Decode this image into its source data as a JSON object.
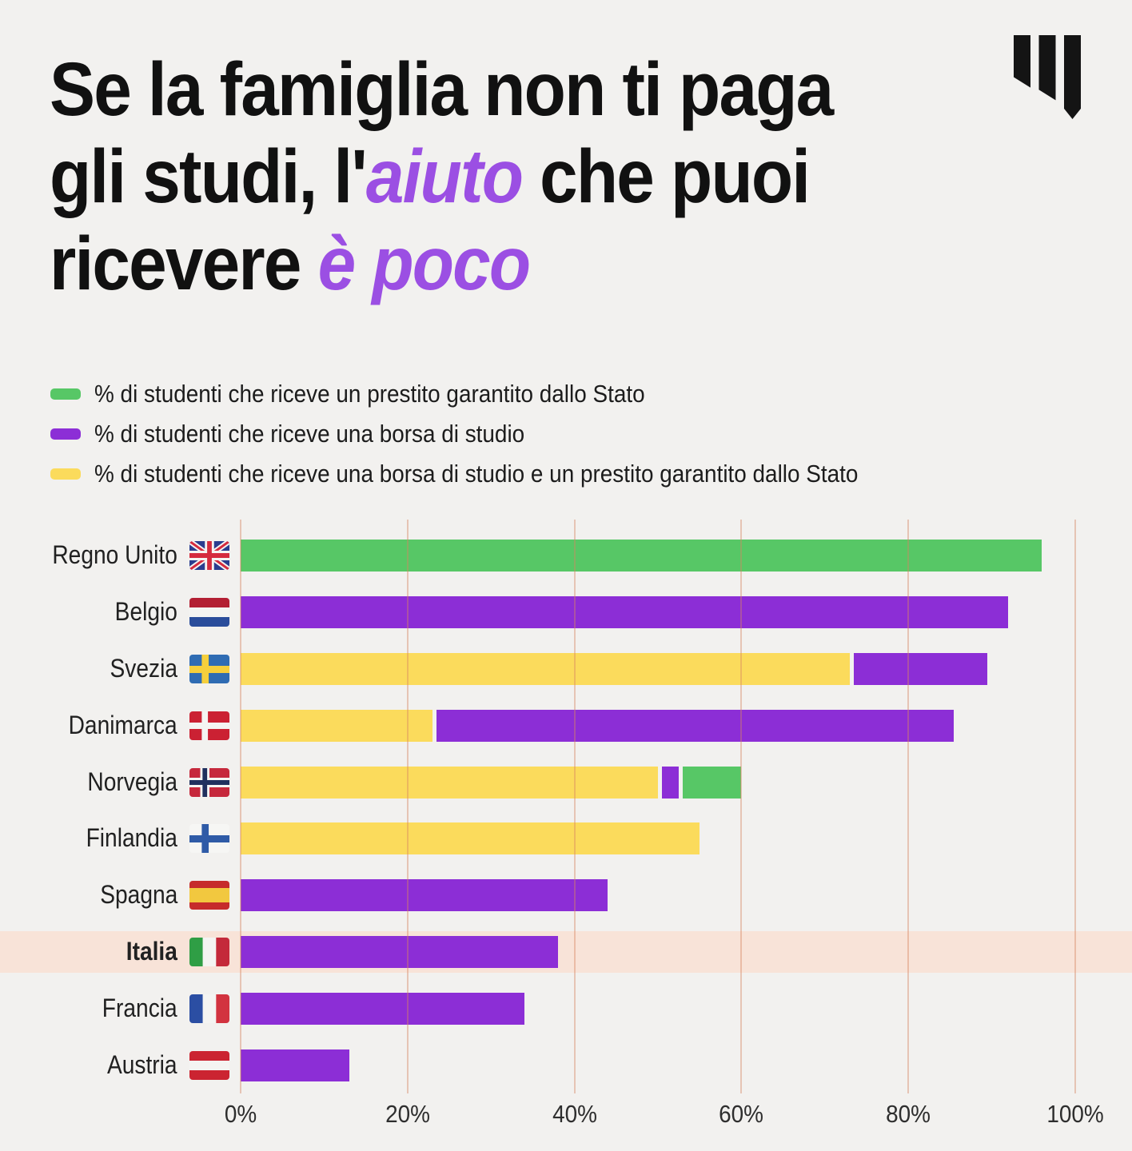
{
  "header": {
    "title_lines": [
      [
        {
          "t": "Se la famiglia non ti paga",
          "c": "black"
        }
      ],
      [
        {
          "t": "gli studi, l'",
          "c": "black"
        },
        {
          "t": "aiuto",
          "c": "purple"
        },
        {
          "t": " che puoi",
          "c": "black"
        }
      ],
      [
        {
          "t": "ricevere ",
          "c": "black"
        },
        {
          "t": "è poco",
          "c": "purple"
        }
      ]
    ],
    "logo": "will-media-w-logo"
  },
  "legend": [
    {
      "key": "green",
      "label": "% di studenti che riceve un prestito garantito dallo Stato"
    },
    {
      "key": "purple",
      "label": "% di studenti che riceve una borsa di studio"
    },
    {
      "key": "yellow",
      "label": "% di studenti che riceve una borsa di studio e un prestito garantito dallo Stato"
    }
  ],
  "chart_data": {
    "type": "bar",
    "orientation": "horizontal",
    "stacked": true,
    "title": "Se la famiglia non ti paga gli studi, l'aiuto che puoi ricevere è poco",
    "xlabel": "",
    "ylabel": "",
    "xlim": [
      0,
      100
    ],
    "x_ticks": [
      "0%",
      "20%",
      "40%",
      "60%",
      "80%",
      "100%"
    ],
    "grid": true,
    "legend_position": "top-left",
    "highlighted_category": "Italia",
    "series_names": {
      "green": "% di studenti che riceve un prestito garantito dallo Stato",
      "purple": "% di studenti che riceve una borsa di studio",
      "yellow": "% di studenti che riceve una borsa di studio e un prestito garantito dallo Stato"
    },
    "categories": [
      "Regno Unito",
      "Belgio",
      "Svezia",
      "Danimarca",
      "Norvegia",
      "Finlandia",
      "Spagna",
      "Italia",
      "Francia",
      "Austria"
    ],
    "rows": [
      {
        "country": "Regno Unito",
        "flag": "uk",
        "highlighted": false,
        "segments": [
          {
            "series": "green",
            "value": 96
          }
        ]
      },
      {
        "country": "Belgio",
        "flag": "nl",
        "highlighted": false,
        "segments": [
          {
            "series": "purple",
            "value": 92
          }
        ]
      },
      {
        "country": "Svezia",
        "flag": "sweden",
        "highlighted": false,
        "segments": [
          {
            "series": "yellow",
            "value": 73
          },
          {
            "series": "purple",
            "value": 16
          }
        ]
      },
      {
        "country": "Danimarca",
        "flag": "denmark",
        "highlighted": false,
        "segments": [
          {
            "series": "yellow",
            "value": 23
          },
          {
            "series": "purple",
            "value": 62
          }
        ]
      },
      {
        "country": "Norvegia",
        "flag": "norway",
        "highlighted": false,
        "segments": [
          {
            "series": "yellow",
            "value": 50
          },
          {
            "series": "purple",
            "value": 2
          },
          {
            "series": "green",
            "value": 7
          }
        ]
      },
      {
        "country": "Finlandia",
        "flag": "finland",
        "highlighted": false,
        "segments": [
          {
            "series": "yellow",
            "value": 55
          }
        ]
      },
      {
        "country": "Spagna",
        "flag": "spain",
        "highlighted": false,
        "segments": [
          {
            "series": "purple",
            "value": 44
          }
        ]
      },
      {
        "country": "Italia",
        "flag": "italy",
        "highlighted": true,
        "segments": [
          {
            "series": "purple",
            "value": 38
          }
        ]
      },
      {
        "country": "Francia",
        "flag": "france",
        "highlighted": false,
        "segments": [
          {
            "series": "purple",
            "value": 34
          }
        ]
      },
      {
        "country": "Austria",
        "flag": "austria",
        "highlighted": false,
        "segments": [
          {
            "series": "purple",
            "value": 13
          }
        ]
      }
    ]
  },
  "colors": {
    "background": "#f2f1ef",
    "title_black": "#111111",
    "title_accent": "#9b4fe3",
    "series": {
      "green": "#57c766",
      "purple": "#8c2ed6",
      "yellow": "#fbdb5c"
    },
    "gridline": "rgba(214,134,98,0.42)",
    "highlight_band": "#f8e3d8",
    "axis_text": "#2e2e2e",
    "logo": "#141414"
  }
}
